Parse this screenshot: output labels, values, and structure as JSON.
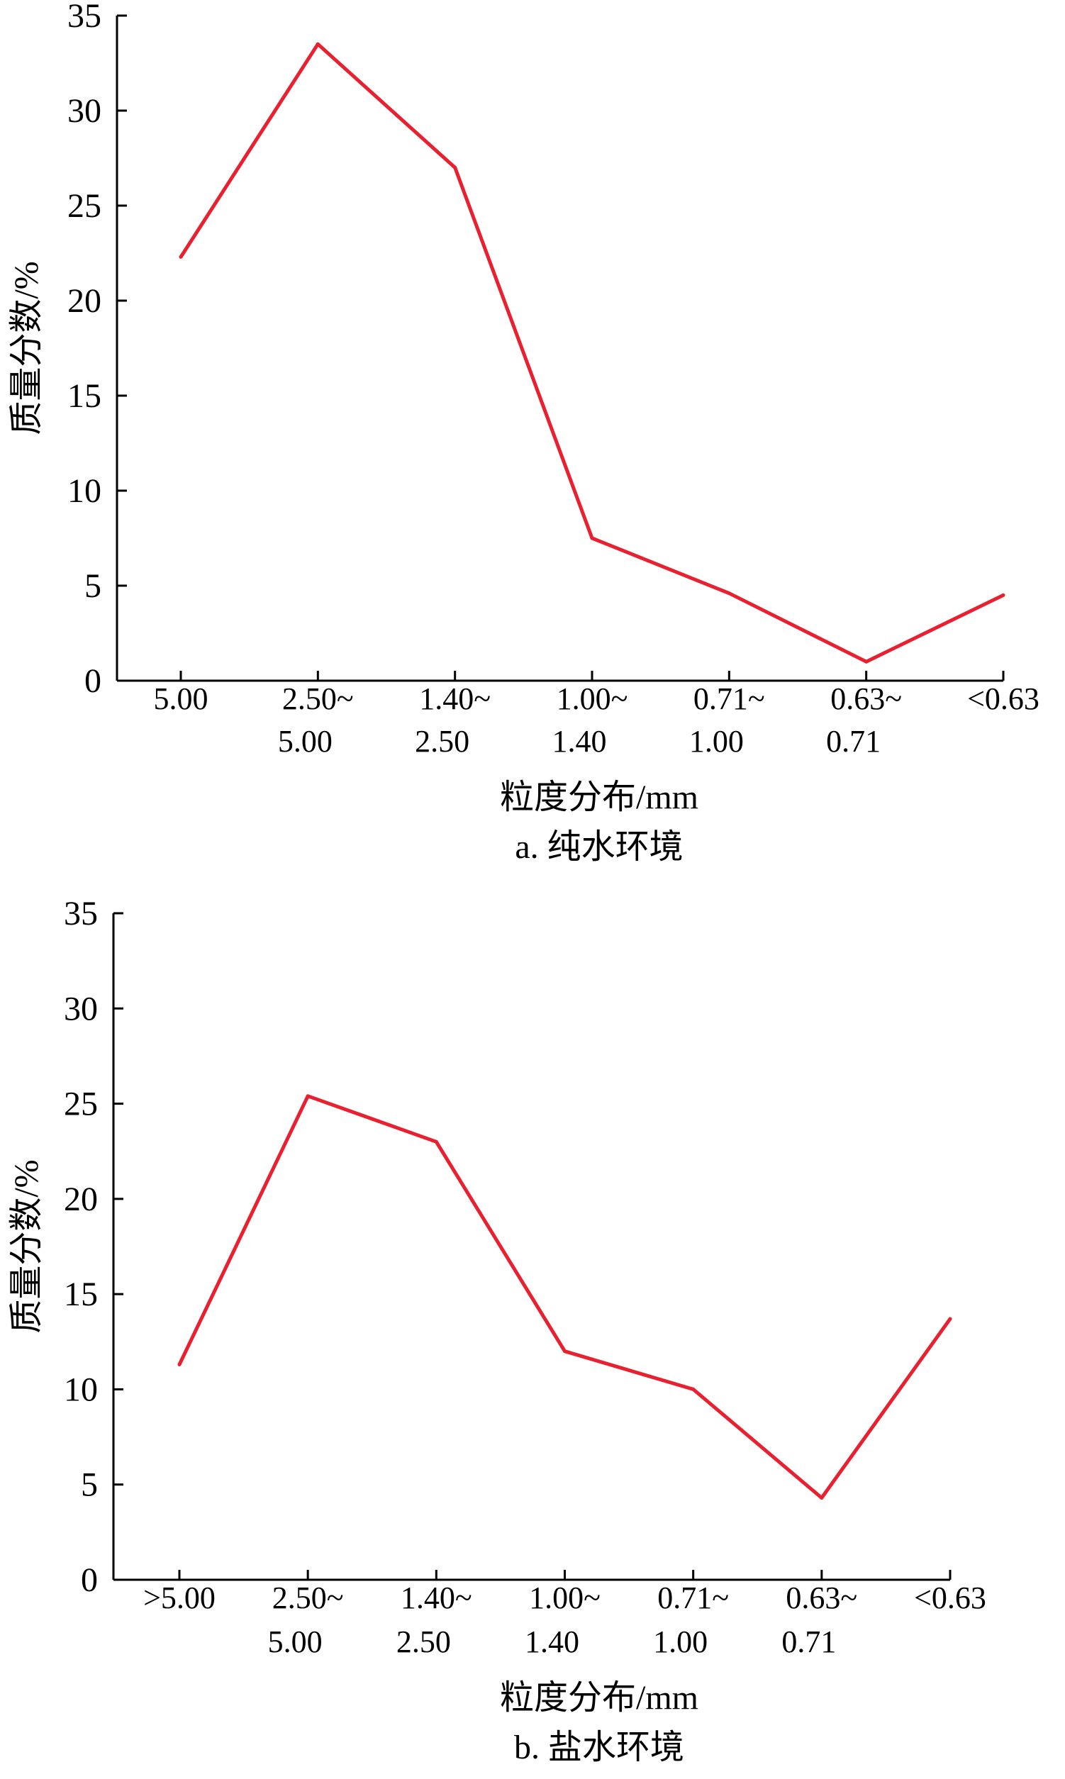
{
  "colors": {
    "line": "#e8202f",
    "axis": "#000000"
  },
  "chart_data": [
    {
      "type": "line",
      "caption": "a. 纯水环境",
      "xlabel": "粒度分布/mm",
      "ylabel": "质量分数/%",
      "ylim": [
        0,
        35
      ],
      "yticks": [
        "0",
        "5",
        "10",
        "15",
        "20",
        "25",
        "30",
        "35"
      ],
      "categories": [
        [
          "5.00",
          ""
        ],
        [
          "2.50~",
          "5.00"
        ],
        [
          "1.40~",
          "2.50"
        ],
        [
          "1.00~",
          "1.40"
        ],
        [
          "0.71~",
          "1.00"
        ],
        [
          "0.63~",
          "0.71"
        ],
        [
          "<0.63",
          ""
        ]
      ],
      "values": [
        22.3,
        33.5,
        27.0,
        7.5,
        4.6,
        1.0,
        4.5
      ]
    },
    {
      "type": "line",
      "caption": "b. 盐水环境",
      "xlabel": "粒度分布/mm",
      "ylabel": "质量分数/%",
      "ylim": [
        0,
        35
      ],
      "yticks": [
        "0",
        "5",
        "10",
        "15",
        "20",
        "25",
        "30",
        "35"
      ],
      "categories": [
        [
          ">5.00",
          ""
        ],
        [
          "2.50~",
          "5.00"
        ],
        [
          "1.40~",
          "2.50"
        ],
        [
          "1.00~",
          "1.40"
        ],
        [
          "0.71~",
          "1.00"
        ],
        [
          "0.63~",
          "0.71"
        ],
        [
          "<0.63",
          ""
        ]
      ],
      "values": [
        11.3,
        25.4,
        23.0,
        12.0,
        10.0,
        4.3,
        13.7
      ]
    }
  ]
}
